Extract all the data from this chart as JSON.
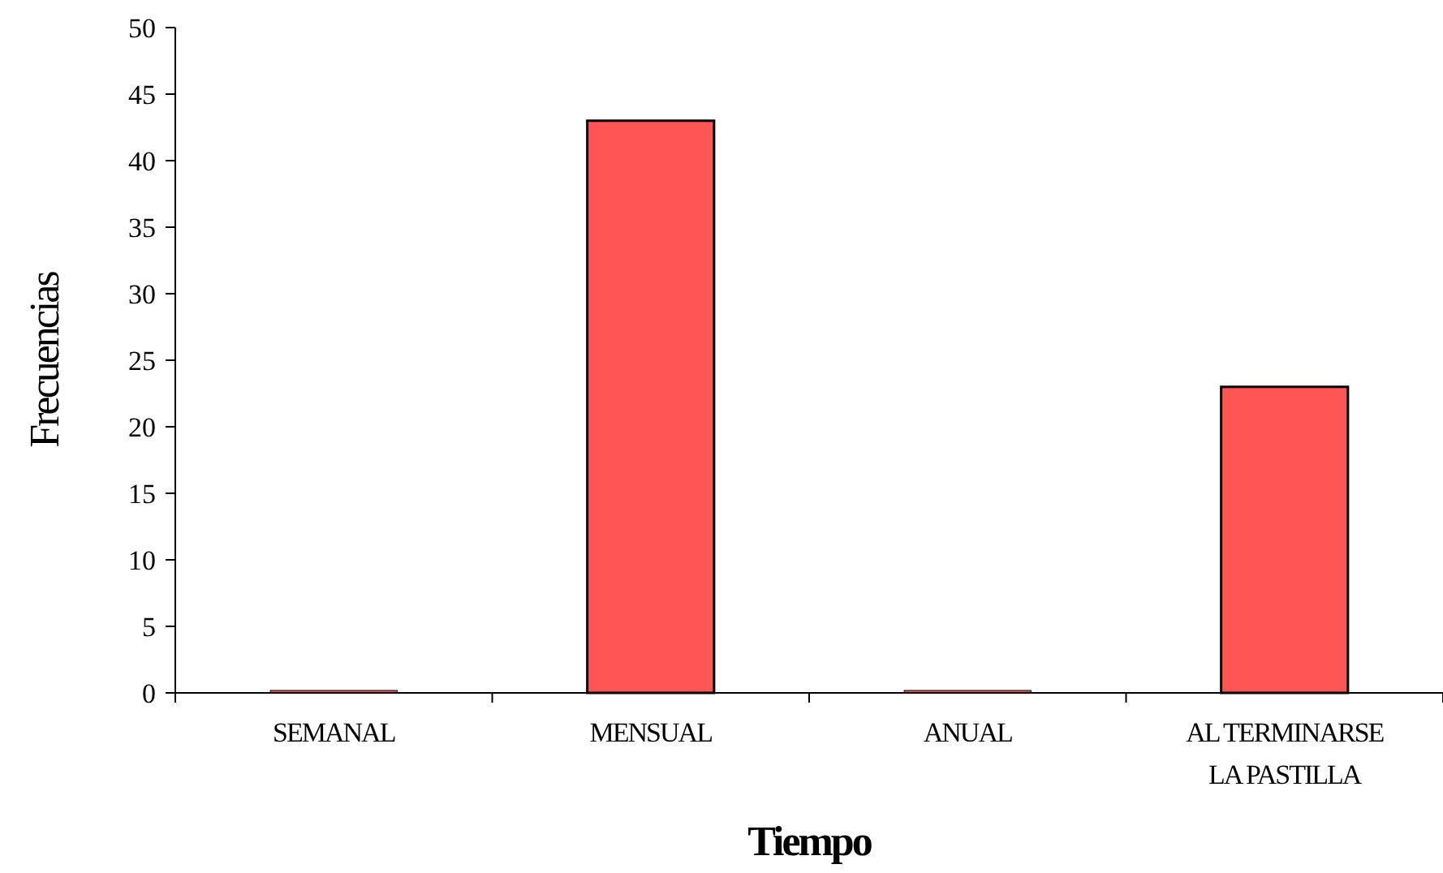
{
  "chart_data": {
    "type": "bar",
    "xlabel": "Tiempo",
    "ylabel": "Frecuencias",
    "categories": [
      "SEMANAL",
      "MENSUAL",
      "ANUAL",
      "AL TERMINARSE LA PASTILLA"
    ],
    "values": [
      0,
      43,
      0,
      23
    ],
    "color": "#ff5555",
    "ylim": [
      0,
      50
    ],
    "yticks": [
      0,
      5,
      10,
      15,
      20,
      25,
      30,
      35,
      40,
      45,
      50
    ],
    "grid": false
  }
}
